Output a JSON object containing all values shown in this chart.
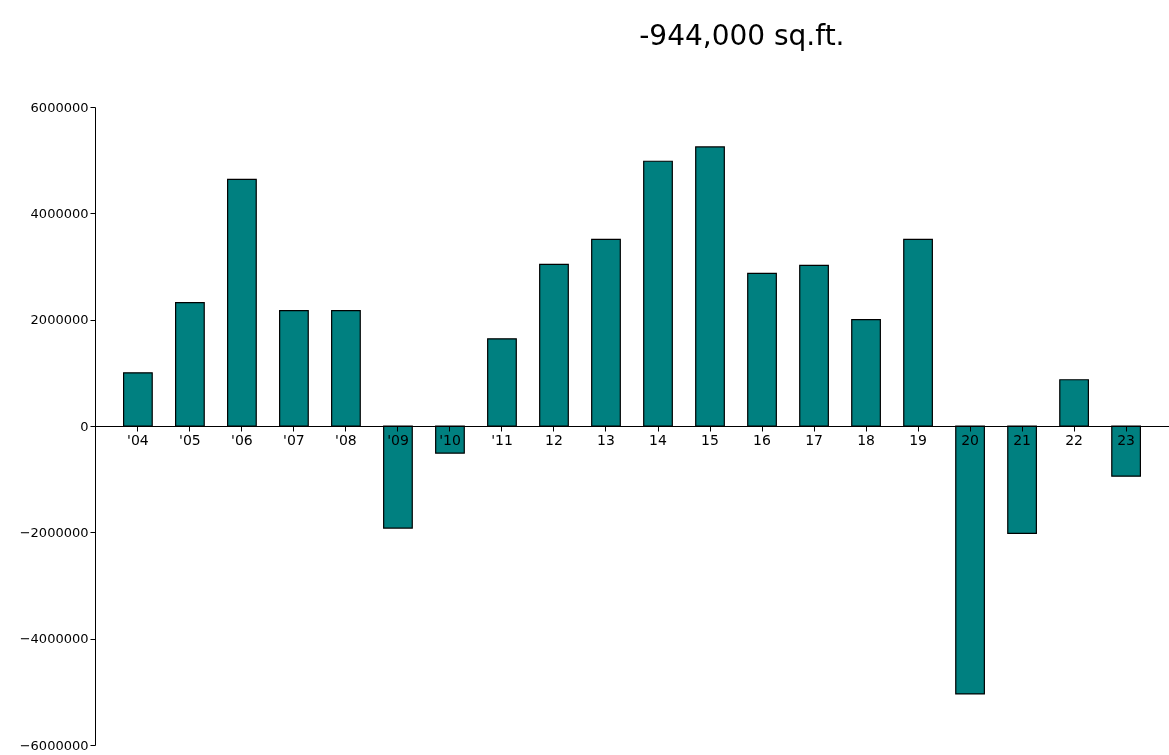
{
  "chart_data": {
    "type": "bar",
    "categories": [
      "'04",
      "'05",
      "'06",
      "'07",
      "'08",
      "'09",
      "'10",
      "'11",
      "12",
      "13",
      "14",
      "15",
      "16",
      "17",
      "18",
      "19",
      "20",
      "21",
      "22",
      "23"
    ],
    "values": [
      1000000,
      2320000,
      4640000,
      2170000,
      2170000,
      -1920000,
      -510000,
      1640000,
      3040000,
      3510000,
      4980000,
      5250000,
      2870000,
      3020000,
      2000000,
      3510000,
      -5040000,
      -2020000,
      870000,
      -944000
    ],
    "color": "#008080",
    "ylim": [
      -6000000,
      6000000
    ],
    "yticks": [
      -6000000,
      -4000000,
      -2000000,
      0,
      2000000,
      4000000,
      6000000
    ],
    "grid": false,
    "annotations": [
      "-944,000 sq.ft."
    ]
  }
}
